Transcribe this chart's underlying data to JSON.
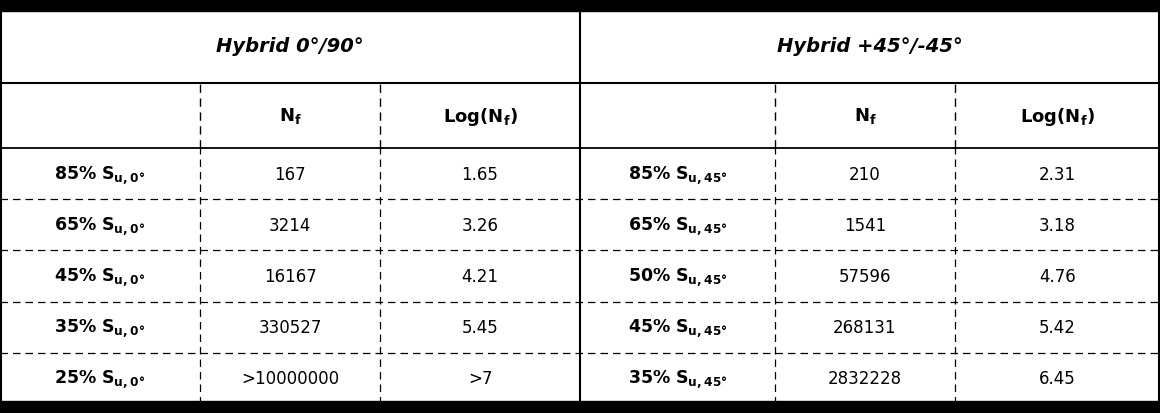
{
  "left_header": "Hybrid 0°/90°",
  "right_header": "Hybrid +45°/-45°",
  "left_rows": [
    [
      "85% S_{u,0°}",
      "167",
      "1.65"
    ],
    [
      "65% S_{u,0°}",
      "3214",
      "3.26"
    ],
    [
      "45% S_{u,0°}",
      "16167",
      "4.21"
    ],
    [
      "35% S_{u,0°}",
      "330527",
      "5.45"
    ],
    [
      "25% S_{u,0°}",
      ">10000000",
      ">7"
    ]
  ],
  "right_rows": [
    [
      "85% S_{u,45°}",
      "210",
      "2.31"
    ],
    [
      "65% S_{u,45°}",
      "1541",
      "3.18"
    ],
    [
      "50% S_{u,45°}",
      "57596",
      "4.76"
    ],
    [
      "45% S_{u,45°}",
      "268131",
      "5.42"
    ],
    [
      "35% S_{u,45°}",
      "2832228",
      "6.45"
    ]
  ],
  "bg_color": "#ffffff",
  "text_color": "#000000",
  "header_fontsize": 14,
  "subheader_fontsize": 13,
  "cell_fontsize": 12,
  "label_fontsize": 12.5
}
